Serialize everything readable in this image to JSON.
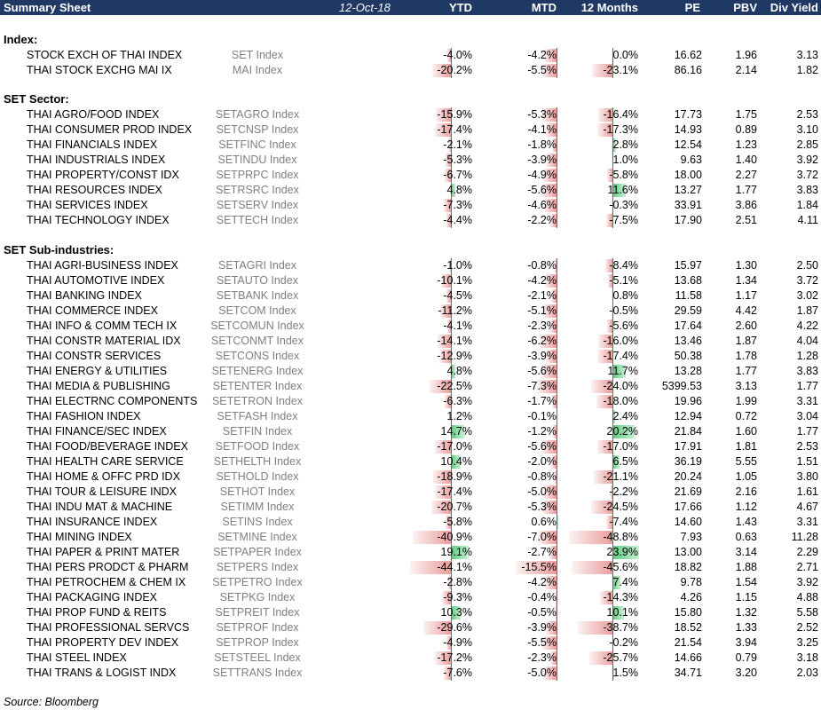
{
  "header": {
    "title": "Summary Sheet",
    "date": "12-Oct-18",
    "columns": [
      "YTD",
      "MTD",
      "12 Months",
      "PE",
      "PBV",
      "Div Yield"
    ]
  },
  "source": "Source: Bloomberg",
  "sections": [
    {
      "title": "Index:",
      "rows": [
        {
          "name": "STOCK EXCH OF THAI INDEX",
          "ticker": "SET Index",
          "ytd": "-4.0%",
          "mtd": "-4.2%",
          "m12": "0.0%",
          "pe": "16.62",
          "pbv": "1.96",
          "dy": "3.13"
        },
        {
          "name": "THAI STOCK EXCHG MAI IX",
          "ticker": "MAI Index",
          "ytd": "-20.2%",
          "mtd": "-5.5%",
          "m12": "-23.1%",
          "pe": "86.16",
          "pbv": "2.14",
          "dy": "1.82"
        }
      ]
    },
    {
      "title": "SET Sector:",
      "rows": [
        {
          "name": "THAI AGRO/FOOD INDEX",
          "ticker": "SETAGRO Index",
          "ytd": "-15.9%",
          "mtd": "-5.3%",
          "m12": "-16.4%",
          "pe": "17.73",
          "pbv": "1.75",
          "dy": "2.53"
        },
        {
          "name": "THAI CONSUMER PROD INDEX",
          "ticker": "SETCNSP Index",
          "ytd": "-17.4%",
          "mtd": "-4.1%",
          "m12": "-17.3%",
          "pe": "14.93",
          "pbv": "0.89",
          "dy": "3.10"
        },
        {
          "name": "THAI FINANCIALS INDEX",
          "ticker": "SETFINC Index",
          "ytd": "-2.1%",
          "mtd": "-1.8%",
          "m12": "2.8%",
          "pe": "12.54",
          "pbv": "1.23",
          "dy": "2.85"
        },
        {
          "name": "THAI INDUSTRIALS INDEX",
          "ticker": "SETINDU Index",
          "ytd": "-5.3%",
          "mtd": "-3.9%",
          "m12": "1.0%",
          "pe": "9.63",
          "pbv": "1.40",
          "dy": "3.92"
        },
        {
          "name": "THAI PROPERTY/CONST IDX",
          "ticker": "SETPRPC Index",
          "ytd": "-6.7%",
          "mtd": "-4.9%",
          "m12": "-5.8%",
          "pe": "18.00",
          "pbv": "2.27",
          "dy": "3.72"
        },
        {
          "name": "THAI RESOURCES INDEX",
          "ticker": "SETRSRC Index",
          "ytd": "4.8%",
          "mtd": "-5.6%",
          "m12": "11.6%",
          "pe": "13.27",
          "pbv": "1.77",
          "dy": "3.83"
        },
        {
          "name": "THAI SERVICES INDEX",
          "ticker": "SETSERV Index",
          "ytd": "-7.3%",
          "mtd": "-4.6%",
          "m12": "-0.3%",
          "pe": "33.91",
          "pbv": "3.86",
          "dy": "1.84"
        },
        {
          "name": "THAI TECHNOLOGY INDEX",
          "ticker": "SETTECH Index",
          "ytd": "-4.4%",
          "mtd": "-2.2%",
          "m12": "-7.5%",
          "pe": "17.90",
          "pbv": "2.51",
          "dy": "4.11"
        }
      ]
    },
    {
      "title": "SET Sub-industries:",
      "rows": [
        {
          "name": "THAI AGRI-BUSINESS INDEX",
          "ticker": "SETAGRI Index",
          "ytd": "-1.0%",
          "mtd": "-0.8%",
          "m12": "-8.4%",
          "pe": "15.97",
          "pbv": "1.30",
          "dy": "2.50"
        },
        {
          "name": "THAI AUTOMOTIVE INDEX",
          "ticker": "SETAUTO Index",
          "ytd": "-10.1%",
          "mtd": "-4.2%",
          "m12": "-5.1%",
          "pe": "13.68",
          "pbv": "1.34",
          "dy": "3.72"
        },
        {
          "name": "THAI BANKING INDEX",
          "ticker": "SETBANK Index",
          "ytd": "-4.5%",
          "mtd": "-2.1%",
          "m12": "0.8%",
          "pe": "11.58",
          "pbv": "1.17",
          "dy": "3.02"
        },
        {
          "name": "THAI COMMERCE INDEX",
          "ticker": "SETCOM Index",
          "ytd": "-11.2%",
          "mtd": "-5.1%",
          "m12": "-0.5%",
          "pe": "29.59",
          "pbv": "4.42",
          "dy": "1.87"
        },
        {
          "name": "THAI INFO & COMM TECH IX",
          "ticker": "SETCOMUN Index",
          "ytd": "-4.1%",
          "mtd": "-2.3%",
          "m12": "-5.6%",
          "pe": "17.64",
          "pbv": "2.60",
          "dy": "4.22"
        },
        {
          "name": "THAI CONSTR MATERIAL IDX",
          "ticker": "SETCONMT Index",
          "ytd": "-14.1%",
          "mtd": "-6.2%",
          "m12": "-16.0%",
          "pe": "13.46",
          "pbv": "1.87",
          "dy": "4.04"
        },
        {
          "name": "THAI CONSTR SERVICES",
          "ticker": "SETCONS Index",
          "ytd": "-12.9%",
          "mtd": "-3.9%",
          "m12": "-17.4%",
          "pe": "50.38",
          "pbv": "1.78",
          "dy": "1.28"
        },
        {
          "name": "THAI ENERGY & UTILITIES",
          "ticker": "SETENERG Index",
          "ytd": "4.8%",
          "mtd": "-5.6%",
          "m12": "11.7%",
          "pe": "13.28",
          "pbv": "1.77",
          "dy": "3.83"
        },
        {
          "name": "THAI MEDIA & PUBLISHING",
          "ticker": "SETENTER Index",
          "ytd": "-22.5%",
          "mtd": "-7.3%",
          "m12": "-24.0%",
          "pe": "5399.53",
          "pbv": "3.13",
          "dy": "1.77"
        },
        {
          "name": "THAI ELECTRNC COMPONENTS",
          "ticker": "SETETRON Index",
          "ytd": "-6.3%",
          "mtd": "-1.7%",
          "m12": "-18.0%",
          "pe": "19.96",
          "pbv": "1.99",
          "dy": "3.31"
        },
        {
          "name": "THAI FASHION INDEX",
          "ticker": "SETFASH Index",
          "ytd": "1.2%",
          "mtd": "-0.1%",
          "m12": "2.4%",
          "pe": "12.94",
          "pbv": "0.72",
          "dy": "3.04"
        },
        {
          "name": "THAI FINANCE/SEC INDEX",
          "ticker": "SETFIN Index",
          "ytd": "14.7%",
          "mtd": "-1.2%",
          "m12": "20.2%",
          "pe": "21.84",
          "pbv": "1.60",
          "dy": "1.77"
        },
        {
          "name": "THAI FOOD/BEVERAGE INDEX",
          "ticker": "SETFOOD Index",
          "ytd": "-17.0%",
          "mtd": "-5.6%",
          "m12": "-17.0%",
          "pe": "17.91",
          "pbv": "1.81",
          "dy": "2.53"
        },
        {
          "name": "THAI HEALTH CARE SERVICE",
          "ticker": "SETHELTH Index",
          "ytd": "10.4%",
          "mtd": "-2.0%",
          "m12": "6.5%",
          "pe": "36.19",
          "pbv": "5.55",
          "dy": "1.51"
        },
        {
          "name": "THAI HOME & OFFC PRD IDX",
          "ticker": "SETHOLD Index",
          "ytd": "-18.9%",
          "mtd": "-0.8%",
          "m12": "-21.1%",
          "pe": "20.24",
          "pbv": "1.05",
          "dy": "3.80"
        },
        {
          "name": "THAI TOUR & LEISURE INDX",
          "ticker": "SETHOT Index",
          "ytd": "-17.4%",
          "mtd": "-5.0%",
          "m12": "-2.2%",
          "pe": "21.69",
          "pbv": "2.16",
          "dy": "1.61"
        },
        {
          "name": "THAI INDU MAT & MACHINE",
          "ticker": "SETIMM Index",
          "ytd": "-20.7%",
          "mtd": "-5.3%",
          "m12": "-24.5%",
          "pe": "17.66",
          "pbv": "1.12",
          "dy": "4.67"
        },
        {
          "name": "THAI INSURANCE INDEX",
          "ticker": "SETINS Index",
          "ytd": "-5.8%",
          "mtd": "0.6%",
          "m12": "-7.4%",
          "pe": "14.60",
          "pbv": "1.43",
          "dy": "3.31"
        },
        {
          "name": "THAI MINING INDEX",
          "ticker": "SETMINE Index",
          "ytd": "-40.9%",
          "mtd": "-7.0%",
          "m12": "-48.8%",
          "pe": "7.93",
          "pbv": "0.63",
          "dy": "11.28"
        },
        {
          "name": "THAI PAPER & PRINT MATER",
          "ticker": "SETPAPER Index",
          "ytd": "19.1%",
          "mtd": "-2.7%",
          "m12": "23.9%",
          "pe": "13.00",
          "pbv": "3.14",
          "dy": "2.29"
        },
        {
          "name": "THAI PERS PRODCT & PHARM",
          "ticker": "SETPERS Index",
          "ytd": "-44.1%",
          "mtd": "-15.5%",
          "m12": "-45.6%",
          "pe": "18.82",
          "pbv": "1.88",
          "dy": "2.71"
        },
        {
          "name": "THAI PETROCHEM & CHEM IX",
          "ticker": "SETPETRO Index",
          "ytd": "-2.8%",
          "mtd": "-4.2%",
          "m12": "7.4%",
          "pe": "9.78",
          "pbv": "1.54",
          "dy": "3.92"
        },
        {
          "name": "THAI PACKAGING INDEX",
          "ticker": "SETPKG Index",
          "ytd": "-9.3%",
          "mtd": "-0.4%",
          "m12": "-14.3%",
          "pe": "4.26",
          "pbv": "1.15",
          "dy": "4.88"
        },
        {
          "name": "THAI PROP FUND & REITS",
          "ticker": "SETPREIT Index",
          "ytd": "10.3%",
          "mtd": "-0.5%",
          "m12": "10.1%",
          "pe": "15.80",
          "pbv": "1.32",
          "dy": "5.58"
        },
        {
          "name": "THAI PROFESSIONAL SERVCS",
          "ticker": "SETPROF Index",
          "ytd": "-29.6%",
          "mtd": "-3.9%",
          "m12": "-38.7%",
          "pe": "18.52",
          "pbv": "1.33",
          "dy": "2.52"
        },
        {
          "name": "THAI PROPERTY DEV INDEX",
          "ticker": "SETPROP Index",
          "ytd": "-4.9%",
          "mtd": "-5.5%",
          "m12": "-0.2%",
          "pe": "21.54",
          "pbv": "3.94",
          "dy": "3.25"
        },
        {
          "name": "THAI STEEL INDEX",
          "ticker": "SETSTEEL Index",
          "ytd": "-17.2%",
          "mtd": "-2.3%",
          "m12": "-25.7%",
          "pe": "14.66",
          "pbv": "0.79",
          "dy": "3.18"
        },
        {
          "name": "THAI TRANS & LOGIST INDX",
          "ticker": "SETTRANS Index",
          "ytd": "-7.6%",
          "mtd": "-5.0%",
          "m12": "1.5%",
          "pe": "34.71",
          "pbv": "3.20",
          "dy": "2.03"
        }
      ]
    }
  ]
}
